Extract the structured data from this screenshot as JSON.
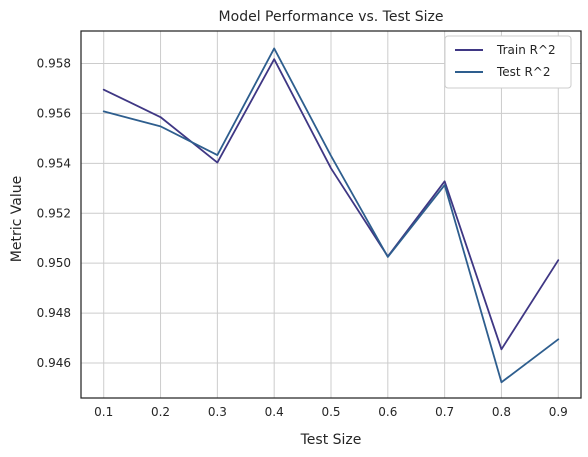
{
  "chart_data": {
    "type": "line",
    "title": "Model Performance vs. Test Size",
    "xlabel": "Test Size",
    "ylabel": "Metric Value",
    "x": [
      0.1,
      0.2,
      0.3,
      0.4,
      0.5,
      0.6,
      0.7,
      0.8,
      0.9
    ],
    "x_tick_labels": [
      "0.1",
      "0.2",
      "0.3",
      "0.4",
      "0.5",
      "0.6",
      "0.7",
      "0.8",
      "0.9"
    ],
    "y_ticks": [
      0.946,
      0.948,
      0.95,
      0.952,
      0.954,
      0.956,
      0.958
    ],
    "y_tick_labels": [
      "0.946",
      "0.948",
      "0.950",
      "0.952",
      "0.954",
      "0.956",
      "0.958"
    ],
    "xlim": [
      0.06,
      0.94
    ],
    "ylim": [
      0.9446,
      0.9593
    ],
    "grid": true,
    "legend_position": "top-right",
    "series": [
      {
        "name": "Train R^2",
        "color": "#3f3784",
        "values": [
          0.95695,
          0.95585,
          0.95403,
          0.95817,
          0.9538,
          0.95027,
          0.95328,
          0.94655,
          0.95012
        ]
      },
      {
        "name": "Test R^2",
        "color": "#2e5e8e",
        "values": [
          0.95608,
          0.95548,
          0.95433,
          0.9586,
          0.9543,
          0.95025,
          0.95313,
          0.94523,
          0.94695
        ]
      }
    ]
  }
}
